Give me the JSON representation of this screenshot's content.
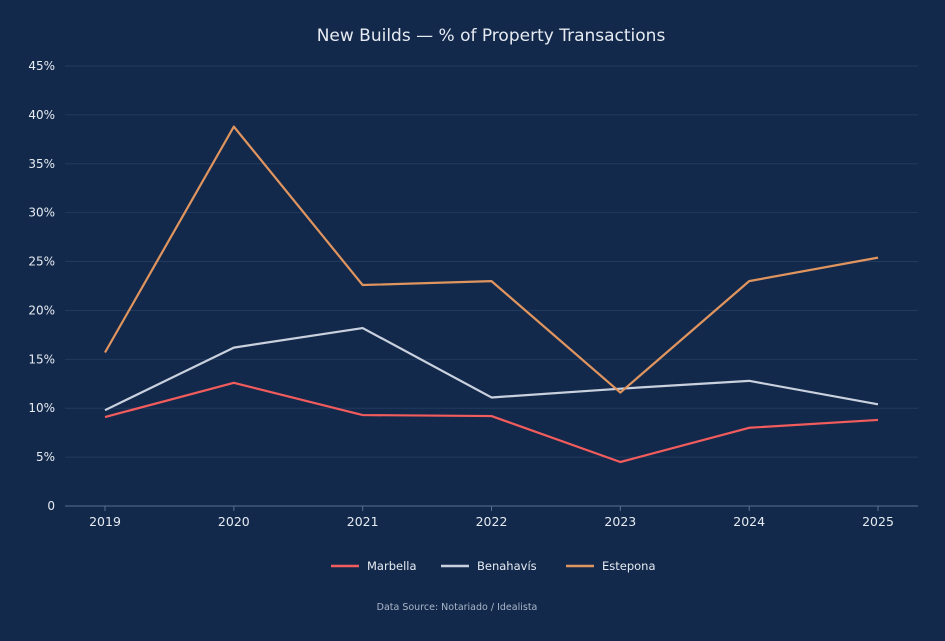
{
  "chart_data": {
    "type": "line",
    "title": "New Builds — % of Property Transactions",
    "xlabel": "",
    "ylabel": "",
    "categories": [
      "2019",
      "2020",
      "2021",
      "2022",
      "2023",
      "2024",
      "2025"
    ],
    "ylim": [
      0,
      45
    ],
    "yticks": [
      0,
      5,
      10,
      15,
      20,
      25,
      30,
      35,
      40,
      45
    ],
    "ytick_labels": [
      "0",
      "5%",
      "10%",
      "15%",
      "20%",
      "25%",
      "30%",
      "35%",
      "40%",
      "45%"
    ],
    "grid": true,
    "legend": "bottom",
    "series": [
      {
        "name": "Marbella",
        "color": "#f25c5c",
        "values": [
          9.1,
          12.6,
          9.3,
          9.2,
          4.5,
          8.0,
          8.8
        ]
      },
      {
        "name": "Benahavís",
        "color": "#c9d1de",
        "values": [
          9.8,
          16.2,
          18.2,
          11.1,
          12.0,
          12.8,
          10.4
        ]
      },
      {
        "name": "Estepona",
        "color": "#e0955f",
        "values": [
          15.7,
          38.8,
          22.6,
          23.0,
          11.6,
          23.0,
          25.4
        ]
      }
    ],
    "source": "Data Source: Notariado / Idealista"
  },
  "colors": {
    "background": "#13294b",
    "grid": "#213a5e",
    "text": "#e6ebf2",
    "axis": "#5a6f8f"
  }
}
